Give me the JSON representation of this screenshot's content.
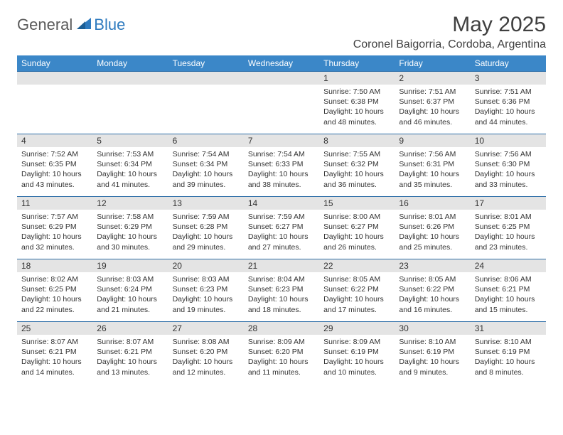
{
  "brand": {
    "part1": "General",
    "part2": "Blue"
  },
  "title": "May 2025",
  "location": "Coronel Baigorria, Cordoba, Argentina",
  "colors": {
    "header_bg": "#3b87c8",
    "header_text": "#ffffff",
    "daynum_bg": "#e4e4e4",
    "rule": "#2f6fa8",
    "brand_blue": "#2f7bbf",
    "text": "#333333",
    "bg": "#ffffff"
  },
  "day_headers": [
    "Sunday",
    "Monday",
    "Tuesday",
    "Wednesday",
    "Thursday",
    "Friday",
    "Saturday"
  ],
  "weeks": [
    [
      {
        "n": "",
        "sr": "",
        "ss": "",
        "dl": ""
      },
      {
        "n": "",
        "sr": "",
        "ss": "",
        "dl": ""
      },
      {
        "n": "",
        "sr": "",
        "ss": "",
        "dl": ""
      },
      {
        "n": "",
        "sr": "",
        "ss": "",
        "dl": ""
      },
      {
        "n": "1",
        "sr": "Sunrise: 7:50 AM",
        "ss": "Sunset: 6:38 PM",
        "dl": "Daylight: 10 hours and 48 minutes."
      },
      {
        "n": "2",
        "sr": "Sunrise: 7:51 AM",
        "ss": "Sunset: 6:37 PM",
        "dl": "Daylight: 10 hours and 46 minutes."
      },
      {
        "n": "3",
        "sr": "Sunrise: 7:51 AM",
        "ss": "Sunset: 6:36 PM",
        "dl": "Daylight: 10 hours and 44 minutes."
      }
    ],
    [
      {
        "n": "4",
        "sr": "Sunrise: 7:52 AM",
        "ss": "Sunset: 6:35 PM",
        "dl": "Daylight: 10 hours and 43 minutes."
      },
      {
        "n": "5",
        "sr": "Sunrise: 7:53 AM",
        "ss": "Sunset: 6:34 PM",
        "dl": "Daylight: 10 hours and 41 minutes."
      },
      {
        "n": "6",
        "sr": "Sunrise: 7:54 AM",
        "ss": "Sunset: 6:34 PM",
        "dl": "Daylight: 10 hours and 39 minutes."
      },
      {
        "n": "7",
        "sr": "Sunrise: 7:54 AM",
        "ss": "Sunset: 6:33 PM",
        "dl": "Daylight: 10 hours and 38 minutes."
      },
      {
        "n": "8",
        "sr": "Sunrise: 7:55 AM",
        "ss": "Sunset: 6:32 PM",
        "dl": "Daylight: 10 hours and 36 minutes."
      },
      {
        "n": "9",
        "sr": "Sunrise: 7:56 AM",
        "ss": "Sunset: 6:31 PM",
        "dl": "Daylight: 10 hours and 35 minutes."
      },
      {
        "n": "10",
        "sr": "Sunrise: 7:56 AM",
        "ss": "Sunset: 6:30 PM",
        "dl": "Daylight: 10 hours and 33 minutes."
      }
    ],
    [
      {
        "n": "11",
        "sr": "Sunrise: 7:57 AM",
        "ss": "Sunset: 6:29 PM",
        "dl": "Daylight: 10 hours and 32 minutes."
      },
      {
        "n": "12",
        "sr": "Sunrise: 7:58 AM",
        "ss": "Sunset: 6:29 PM",
        "dl": "Daylight: 10 hours and 30 minutes."
      },
      {
        "n": "13",
        "sr": "Sunrise: 7:59 AM",
        "ss": "Sunset: 6:28 PM",
        "dl": "Daylight: 10 hours and 29 minutes."
      },
      {
        "n": "14",
        "sr": "Sunrise: 7:59 AM",
        "ss": "Sunset: 6:27 PM",
        "dl": "Daylight: 10 hours and 27 minutes."
      },
      {
        "n": "15",
        "sr": "Sunrise: 8:00 AM",
        "ss": "Sunset: 6:27 PM",
        "dl": "Daylight: 10 hours and 26 minutes."
      },
      {
        "n": "16",
        "sr": "Sunrise: 8:01 AM",
        "ss": "Sunset: 6:26 PM",
        "dl": "Daylight: 10 hours and 25 minutes."
      },
      {
        "n": "17",
        "sr": "Sunrise: 8:01 AM",
        "ss": "Sunset: 6:25 PM",
        "dl": "Daylight: 10 hours and 23 minutes."
      }
    ],
    [
      {
        "n": "18",
        "sr": "Sunrise: 8:02 AM",
        "ss": "Sunset: 6:25 PM",
        "dl": "Daylight: 10 hours and 22 minutes."
      },
      {
        "n": "19",
        "sr": "Sunrise: 8:03 AM",
        "ss": "Sunset: 6:24 PM",
        "dl": "Daylight: 10 hours and 21 minutes."
      },
      {
        "n": "20",
        "sr": "Sunrise: 8:03 AM",
        "ss": "Sunset: 6:23 PM",
        "dl": "Daylight: 10 hours and 19 minutes."
      },
      {
        "n": "21",
        "sr": "Sunrise: 8:04 AM",
        "ss": "Sunset: 6:23 PM",
        "dl": "Daylight: 10 hours and 18 minutes."
      },
      {
        "n": "22",
        "sr": "Sunrise: 8:05 AM",
        "ss": "Sunset: 6:22 PM",
        "dl": "Daylight: 10 hours and 17 minutes."
      },
      {
        "n": "23",
        "sr": "Sunrise: 8:05 AM",
        "ss": "Sunset: 6:22 PM",
        "dl": "Daylight: 10 hours and 16 minutes."
      },
      {
        "n": "24",
        "sr": "Sunrise: 8:06 AM",
        "ss": "Sunset: 6:21 PM",
        "dl": "Daylight: 10 hours and 15 minutes."
      }
    ],
    [
      {
        "n": "25",
        "sr": "Sunrise: 8:07 AM",
        "ss": "Sunset: 6:21 PM",
        "dl": "Daylight: 10 hours and 14 minutes."
      },
      {
        "n": "26",
        "sr": "Sunrise: 8:07 AM",
        "ss": "Sunset: 6:21 PM",
        "dl": "Daylight: 10 hours and 13 minutes."
      },
      {
        "n": "27",
        "sr": "Sunrise: 8:08 AM",
        "ss": "Sunset: 6:20 PM",
        "dl": "Daylight: 10 hours and 12 minutes."
      },
      {
        "n": "28",
        "sr": "Sunrise: 8:09 AM",
        "ss": "Sunset: 6:20 PM",
        "dl": "Daylight: 10 hours and 11 minutes."
      },
      {
        "n": "29",
        "sr": "Sunrise: 8:09 AM",
        "ss": "Sunset: 6:19 PM",
        "dl": "Daylight: 10 hours and 10 minutes."
      },
      {
        "n": "30",
        "sr": "Sunrise: 8:10 AM",
        "ss": "Sunset: 6:19 PM",
        "dl": "Daylight: 10 hours and 9 minutes."
      },
      {
        "n": "31",
        "sr": "Sunrise: 8:10 AM",
        "ss": "Sunset: 6:19 PM",
        "dl": "Daylight: 10 hours and 8 minutes."
      }
    ]
  ]
}
